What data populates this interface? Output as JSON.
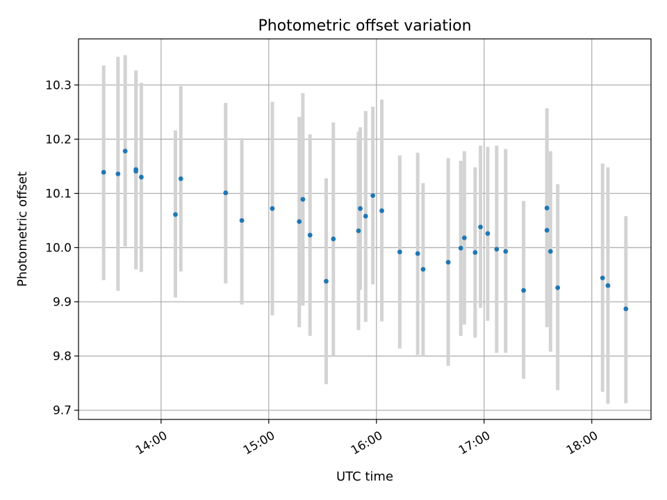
{
  "chart_data": {
    "type": "scatter",
    "title": "Photometric offset variation",
    "xlabel": "UTC time",
    "ylabel": "Photometric offset",
    "xlim": [
      "13:14",
      "18:33"
    ],
    "ylim": [
      9.683,
      10.385
    ],
    "xticks": [
      "14:00",
      "15:00",
      "16:00",
      "17:00",
      "18:00"
    ],
    "yticks": [
      "9.7",
      "9.8",
      "9.9",
      "10.0",
      "10.1",
      "10.2",
      "10.3"
    ],
    "grid": true,
    "colors": {
      "points": "#1f77b4",
      "errorbars": "#d3d3d3",
      "grid": "#b0b0b0"
    },
    "points": [
      {
        "x": "13:28",
        "y": 10.139,
        "ylo": 9.94,
        "yhi": 10.336
      },
      {
        "x": "13:36",
        "y": 10.136,
        "ylo": 9.92,
        "yhi": 10.352
      },
      {
        "x": "13:40",
        "y": 10.178,
        "ylo": 10.002,
        "yhi": 10.355
      },
      {
        "x": "13:46",
        "y": 10.144,
        "ylo": 9.96,
        "yhi": 10.327
      },
      {
        "x": "13:46",
        "y": 10.141,
        "ylo": 9.96,
        "yhi": 10.325
      },
      {
        "x": "13:49",
        "y": 10.13,
        "ylo": 9.955,
        "yhi": 10.304
      },
      {
        "x": "14:08",
        "y": 10.061,
        "ylo": 9.908,
        "yhi": 10.216
      },
      {
        "x": "14:11",
        "y": 10.127,
        "ylo": 9.956,
        "yhi": 10.298
      },
      {
        "x": "14:36",
        "y": 10.101,
        "ylo": 9.934,
        "yhi": 10.267
      },
      {
        "x": "14:45",
        "y": 10.05,
        "ylo": 9.895,
        "yhi": 10.202
      },
      {
        "x": "15:02",
        "y": 10.072,
        "ylo": 9.875,
        "yhi": 10.269
      },
      {
        "x": "15:17",
        "y": 10.048,
        "ylo": 9.853,
        "yhi": 10.241
      },
      {
        "x": "15:19",
        "y": 10.089,
        "ylo": 9.893,
        "yhi": 10.285
      },
      {
        "x": "15:23",
        "y": 10.023,
        "ylo": 9.837,
        "yhi": 10.209
      },
      {
        "x": "15:32",
        "y": 9.938,
        "ylo": 9.748,
        "yhi": 10.128
      },
      {
        "x": "15:36",
        "y": 10.016,
        "ylo": 9.8,
        "yhi": 10.231
      },
      {
        "x": "15:50",
        "y": 10.031,
        "ylo": 9.848,
        "yhi": 10.214
      },
      {
        "x": "15:51",
        "y": 10.072,
        "ylo": 9.922,
        "yhi": 10.222
      },
      {
        "x": "15:54",
        "y": 10.058,
        "ylo": 9.863,
        "yhi": 10.252
      },
      {
        "x": "15:58",
        "y": 10.096,
        "ylo": 9.932,
        "yhi": 10.26
      },
      {
        "x": "16:03",
        "y": 10.068,
        "ylo": 9.864,
        "yhi": 10.273
      },
      {
        "x": "16:13",
        "y": 9.992,
        "ylo": 9.814,
        "yhi": 10.17
      },
      {
        "x": "16:23",
        "y": 9.989,
        "ylo": 9.802,
        "yhi": 10.175
      },
      {
        "x": "16:26",
        "y": 9.96,
        "ylo": 9.8,
        "yhi": 10.119
      },
      {
        "x": "16:40",
        "y": 9.973,
        "ylo": 9.782,
        "yhi": 10.165
      },
      {
        "x": "16:47",
        "y": 9.999,
        "ylo": 9.837,
        "yhi": 10.16
      },
      {
        "x": "16:49",
        "y": 10.018,
        "ylo": 9.858,
        "yhi": 10.178
      },
      {
        "x": "16:55",
        "y": 9.991,
        "ylo": 9.834,
        "yhi": 10.148
      },
      {
        "x": "16:58",
        "y": 10.038,
        "ylo": 9.889,
        "yhi": 10.188
      },
      {
        "x": "17:02",
        "y": 10.026,
        "ylo": 9.865,
        "yhi": 10.186
      },
      {
        "x": "17:07",
        "y": 9.997,
        "ylo": 9.806,
        "yhi": 10.188
      },
      {
        "x": "17:12",
        "y": 9.993,
        "ylo": 9.806,
        "yhi": 10.182
      },
      {
        "x": "17:22",
        "y": 9.921,
        "ylo": 9.758,
        "yhi": 10.086
      },
      {
        "x": "17:35",
        "y": 10.073,
        "ylo": 9.888,
        "yhi": 10.257
      },
      {
        "x": "17:35",
        "y": 10.032,
        "ylo": 9.853,
        "yhi": 10.21
      },
      {
        "x": "17:37",
        "y": 9.993,
        "ylo": 9.808,
        "yhi": 10.178
      },
      {
        "x": "17:41",
        "y": 9.926,
        "ylo": 9.737,
        "yhi": 10.117
      },
      {
        "x": "18:06",
        "y": 9.944,
        "ylo": 9.734,
        "yhi": 10.155
      },
      {
        "x": "18:09",
        "y": 9.93,
        "ylo": 9.712,
        "yhi": 10.148
      },
      {
        "x": "18:19",
        "y": 9.887,
        "ylo": 9.713,
        "yhi": 10.058
      }
    ]
  }
}
